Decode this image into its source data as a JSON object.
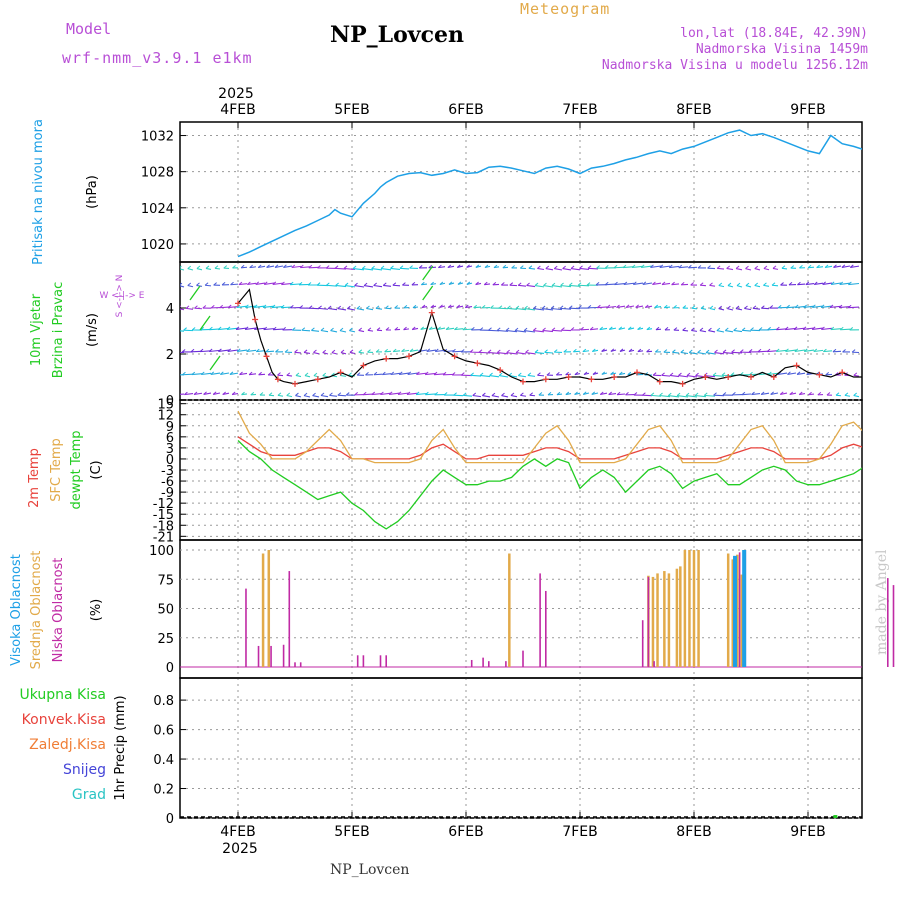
{
  "header": {
    "model_label": "Model",
    "model_name": "wrf-nmm_v3.9.1 e1km",
    "site": "NP_Lovcen",
    "meteogram": "Meteogram",
    "coords": "lon,lat (18.84E, 42.39N)",
    "altitude": "Nadmorska Visina 1459m",
    "model_altitude": "Nadmorska Visina u modelu 1256.12m"
  },
  "footer": {
    "site": "NP_Lovcen"
  },
  "watermark": "made by Angel",
  "colors": {
    "pressure": "#1ea0e6",
    "t2m": "#e8433c",
    "sfc": "#e2aa4a",
    "dewpt": "#22cc22",
    "wind_speed": "#000000",
    "wind_marker": "#e8433c",
    "cloud_high": "#1ea0e6",
    "cloud_mid": "#e2aa4a",
    "cloud_low": "#c02aa4",
    "precip_total": "#22cc22",
    "precip_conv": "#e8433c",
    "precip_frozen": "#f07e36",
    "precip_snow": "#4545d8",
    "precip_hail": "#2ac4c4"
  },
  "chart_data": [
    {
      "type": "line",
      "name": "pressure",
      "x_top_labels": [
        "4FEB",
        "5FEB",
        "6FEB",
        "7FEB",
        "8FEB",
        "9FEB"
      ],
      "x_top_year": "2025",
      "ylabel_title": "Pritisak na nivou mora",
      "ylabel_units": "(hPa)",
      "yticks": [
        "1020",
        "1024",
        "1028",
        "1032"
      ],
      "ylim": [
        1018,
        1033.5
      ],
      "x": [
        0.0,
        0.1,
        0.2,
        0.3,
        0.4,
        0.5,
        0.6,
        0.7,
        0.8,
        0.85,
        0.9,
        1.0,
        1.1,
        1.2,
        1.25,
        1.3,
        1.4,
        1.5,
        1.6,
        1.7,
        1.8,
        1.9,
        2.0,
        2.1,
        2.2,
        2.3,
        2.4,
        2.5,
        2.6,
        2.7,
        2.8,
        2.9,
        3.0,
        3.1,
        3.2,
        3.3,
        3.4,
        3.5,
        3.6,
        3.7,
        3.8,
        3.9,
        4.0,
        4.1,
        4.2,
        4.3,
        4.4,
        4.5,
        4.6,
        4.7,
        4.8,
        4.9,
        5.0,
        5.1,
        5.2,
        5.3,
        5.4,
        5.5,
        5.6,
        5.7,
        5.8,
        5.9,
        6.0
      ],
      "values": [
        1018.6,
        1019.1,
        1019.7,
        1020.3,
        1020.9,
        1021.5,
        1022.0,
        1022.6,
        1023.2,
        1023.8,
        1023.4,
        1023.0,
        1024.5,
        1025.6,
        1026.3,
        1026.8,
        1027.5,
        1027.8,
        1027.9,
        1027.6,
        1027.8,
        1028.2,
        1027.8,
        1027.9,
        1028.5,
        1028.6,
        1028.4,
        1028.1,
        1027.8,
        1028.4,
        1028.6,
        1028.3,
        1027.8,
        1028.4,
        1028.6,
        1028.9,
        1029.3,
        1029.6,
        1030.0,
        1030.3,
        1030.0,
        1030.5,
        1030.8,
        1031.3,
        1031.8,
        1032.3,
        1032.6,
        1032.0,
        1032.2,
        1031.8,
        1031.3,
        1030.8,
        1030.3,
        1030.0,
        1032.0,
        1031.1,
        1030.8,
        1030.4,
        1030.0,
        1029.5,
        1029.0,
        1028.3,
        1027.6
      ]
    },
    {
      "type": "line",
      "name": "wind",
      "ylabel_title": "10m Vjetar Brzina i Pravac",
      "ylabel_units": "(m/s)",
      "direction_legend": "W <-|-> E",
      "direction_legend_ns": "S <-|-> N",
      "yticks": [
        "0",
        "2",
        "4"
      ],
      "ylim": [
        0,
        6
      ],
      "x": [
        0.0,
        0.1,
        0.15,
        0.2,
        0.25,
        0.3,
        0.35,
        0.4,
        0.5,
        0.6,
        0.7,
        0.8,
        0.9,
        1.0,
        1.1,
        1.2,
        1.3,
        1.4,
        1.5,
        1.6,
        1.7,
        1.8,
        1.9,
        2.0,
        2.1,
        2.2,
        2.3,
        2.4,
        2.5,
        2.6,
        2.7,
        2.8,
        2.9,
        3.0,
        3.1,
        3.2,
        3.3,
        3.4,
        3.5,
        3.6,
        3.7,
        3.8,
        3.9,
        4.0,
        4.1,
        4.2,
        4.3,
        4.4,
        4.5,
        4.6,
        4.7,
        4.8,
        4.9,
        5.0,
        5.1,
        5.2,
        5.3,
        5.4,
        5.5,
        5.6,
        5.7,
        5.8,
        5.9,
        6.0
      ],
      "values": [
        4.2,
        4.8,
        3.5,
        2.6,
        1.9,
        1.2,
        0.9,
        0.8,
        0.7,
        0.8,
        0.9,
        1.0,
        1.2,
        1.0,
        1.5,
        1.7,
        1.8,
        1.8,
        1.9,
        2.1,
        3.8,
        2.2,
        1.9,
        1.7,
        1.6,
        1.5,
        1.3,
        1.0,
        0.8,
        0.8,
        0.9,
        0.9,
        1.0,
        1.0,
        0.9,
        0.9,
        1.0,
        1.0,
        1.2,
        1.1,
        0.8,
        0.8,
        0.7,
        0.9,
        1.0,
        0.9,
        1.0,
        1.1,
        1.0,
        1.2,
        1.0,
        1.4,
        1.5,
        1.2,
        1.1,
        1.0,
        1.2,
        1.0,
        1.0,
        0.9,
        1.1,
        1.2,
        1.4,
        1.5
      ]
    },
    {
      "type": "line",
      "name": "temperature",
      "ylabel_series": [
        "2m Temp",
        "SFC Temp",
        "dewpt Temp"
      ],
      "ylabel_units": "(C)",
      "yticks": [
        "15",
        "12",
        "9",
        "6",
        "3",
        "0",
        "-3",
        "-6",
        "-9",
        "-12",
        "-15",
        "-18",
        "-21"
      ],
      "ylim": [
        -22,
        16
      ],
      "x": [
        0.0,
        0.1,
        0.2,
        0.3,
        0.4,
        0.5,
        0.6,
        0.7,
        0.8,
        0.9,
        1.0,
        1.1,
        1.2,
        1.3,
        1.4,
        1.5,
        1.6,
        1.7,
        1.8,
        1.9,
        2.0,
        2.1,
        2.2,
        2.3,
        2.4,
        2.5,
        2.6,
        2.7,
        2.8,
        2.9,
        3.0,
        3.1,
        3.2,
        3.3,
        3.4,
        3.5,
        3.6,
        3.7,
        3.8,
        3.9,
        4.0,
        4.1,
        4.2,
        4.3,
        4.4,
        4.5,
        4.6,
        4.7,
        4.8,
        4.9,
        5.0,
        5.1,
        5.2,
        5.3,
        5.4,
        5.5,
        5.6,
        5.7,
        5.8,
        5.9,
        6.0
      ],
      "series": [
        {
          "name": "2m Temp",
          "values": [
            6,
            4,
            2,
            1,
            1,
            1,
            2,
            3,
            3,
            2,
            0,
            0,
            0,
            0,
            0,
            0,
            1,
            3,
            4,
            2,
            0,
            0,
            1,
            1,
            1,
            1,
            2,
            3,
            3,
            2,
            0,
            0,
            0,
            0,
            1,
            2,
            3,
            3,
            2,
            0,
            0,
            0,
            0,
            1,
            2,
            3,
            3,
            2,
            0,
            0,
            0,
            0,
            1,
            3,
            4,
            3,
            2,
            0,
            0,
            0,
            0
          ]
        },
        {
          "name": "SFC Temp",
          "values": [
            13,
            7,
            4,
            0,
            0,
            0,
            2,
            5,
            8,
            5,
            0,
            0,
            -1,
            -1,
            -1,
            -1,
            0,
            5,
            8,
            3,
            -1,
            -1,
            -1,
            -1,
            -1,
            -1,
            3,
            7,
            9,
            5,
            -1,
            -1,
            -1,
            -1,
            0,
            4,
            8,
            9,
            5,
            -1,
            -1,
            -1,
            -1,
            0,
            4,
            8,
            9,
            5,
            -1,
            -1,
            -1,
            0,
            4,
            9,
            10,
            7,
            4,
            -1,
            -1,
            4,
            8
          ]
        },
        {
          "name": "dewpt Temp",
          "values": [
            5,
            2,
            0,
            -3,
            -5,
            -7,
            -9,
            -11,
            -10,
            -9,
            -12,
            -14,
            -17,
            -19,
            -17,
            -14,
            -10,
            -6,
            -3,
            -5,
            -7,
            -7,
            -6,
            -6,
            -5,
            -2,
            0,
            -2,
            0,
            -1,
            -8,
            -5,
            -3,
            -5,
            -9,
            -6,
            -3,
            -2,
            -4,
            -8,
            -6,
            -5,
            -4,
            -7,
            -7,
            -5,
            -3,
            -2,
            -3,
            -6,
            -7,
            -7,
            -6,
            -5,
            -4,
            -2,
            -4,
            -3,
            -4,
            -3,
            -2
          ]
        }
      ]
    },
    {
      "type": "bar",
      "name": "cloud",
      "ylabel_series": [
        "Visoka Oblacnost",
        "Srednja Oblacnost",
        "Niska Oblacnost"
      ],
      "ylabel_units": "(%)",
      "yticks": [
        "0",
        "25",
        "50",
        "75",
        "100"
      ],
      "ylim": [
        0,
        100
      ],
      "series": [
        {
          "name": "Srednja Oblacnost",
          "x": [
            0.22,
            0.27,
            2.38,
            3.6,
            3.64,
            3.68,
            3.74,
            3.78,
            3.85,
            3.88,
            3.92,
            3.96,
            4.0,
            4.04,
            4.3,
            4.34,
            4.38,
            4.42
          ],
          "values": [
            97,
            100,
            97,
            78,
            77,
            80,
            82,
            80,
            84,
            86,
            100,
            100,
            100,
            100,
            97,
            92,
            96,
            79
          ]
        },
        {
          "name": "Niska Oblacnost",
          "x": [
            0.07,
            0.18,
            0.29,
            0.4,
            0.45,
            0.5,
            0.55,
            1.05,
            1.1,
            1.25,
            1.3,
            2.05,
            2.15,
            2.2,
            2.35,
            2.5,
            2.65,
            2.7,
            3.55,
            3.6,
            3.65,
            4.4,
            4.45,
            5.7,
            5.75
          ],
          "values": [
            67,
            18,
            18,
            19,
            82,
            4,
            4,
            10,
            10,
            10,
            10,
            6,
            8,
            5,
            5,
            14,
            80,
            65,
            40,
            77,
            5,
            98,
            100,
            76,
            70
          ]
        },
        {
          "name": "Visoka Oblacnost",
          "x": [
            4.36,
            4.44
          ],
          "values": [
            95,
            100
          ]
        }
      ]
    },
    {
      "type": "bar",
      "name": "precip",
      "ylabel_series": [
        "Ukupna Kisa",
        "Konvek.Kisa",
        "Zaledj.Kisa",
        "Snijeg",
        "Grad"
      ],
      "ylabel_units": "1hr Precip (mm)",
      "yticks": [
        "0",
        "0.2",
        "0.4",
        "0.6",
        "0.8"
      ],
      "ylim": [
        0,
        0.95
      ],
      "x_bottom_labels": [
        "4FEB",
        "5FEB",
        "6FEB",
        "7FEB",
        "8FEB",
        "9FEB"
      ],
      "x_bottom_year": "2025",
      "series": [
        {
          "name": "Ukupna Kisa",
          "x": [
            5.24
          ],
          "values": [
            0.02
          ]
        }
      ]
    }
  ]
}
